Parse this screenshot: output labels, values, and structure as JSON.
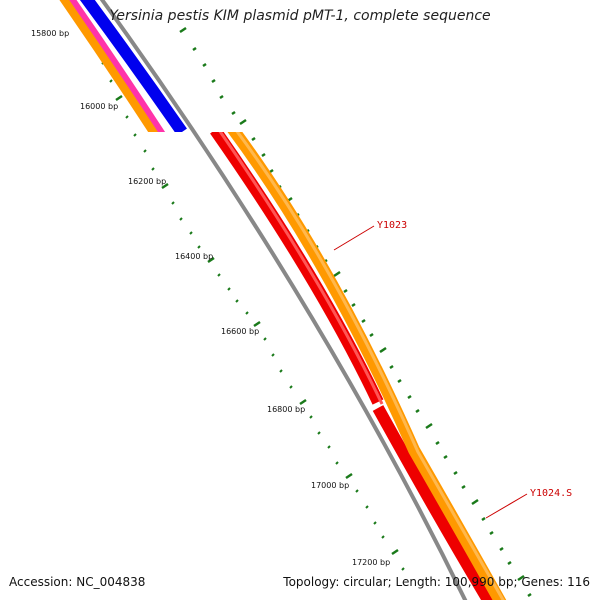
{
  "title": "Yersinia pestis KIM plasmid pMT-1, complete sequence",
  "accession_text": "Accession: NC_004838",
  "summary_text": "Topology: circular; Length: 100,990 bp; Genes: 116",
  "ruler": {
    "tick_labels": [
      "15800 bp",
      "16000 bp",
      "16200 bp",
      "16400 bp",
      "16600 bp",
      "16800 bp",
      "17000 bp",
      "17200 bp"
    ]
  },
  "genes": [
    {
      "label": "Y1023",
      "color": "#ff9900"
    },
    {
      "label": "Y1024.S",
      "color": "#ff9900"
    }
  ],
  "colors": {
    "backbone": "#888888",
    "ruler": "#1a7a1a",
    "forward_gene": "#ff9900",
    "reverse_gene": "#ee0000",
    "blue_track": "#0000ee",
    "magenta_track": "#ff33aa",
    "label_text": "#cc0000"
  }
}
